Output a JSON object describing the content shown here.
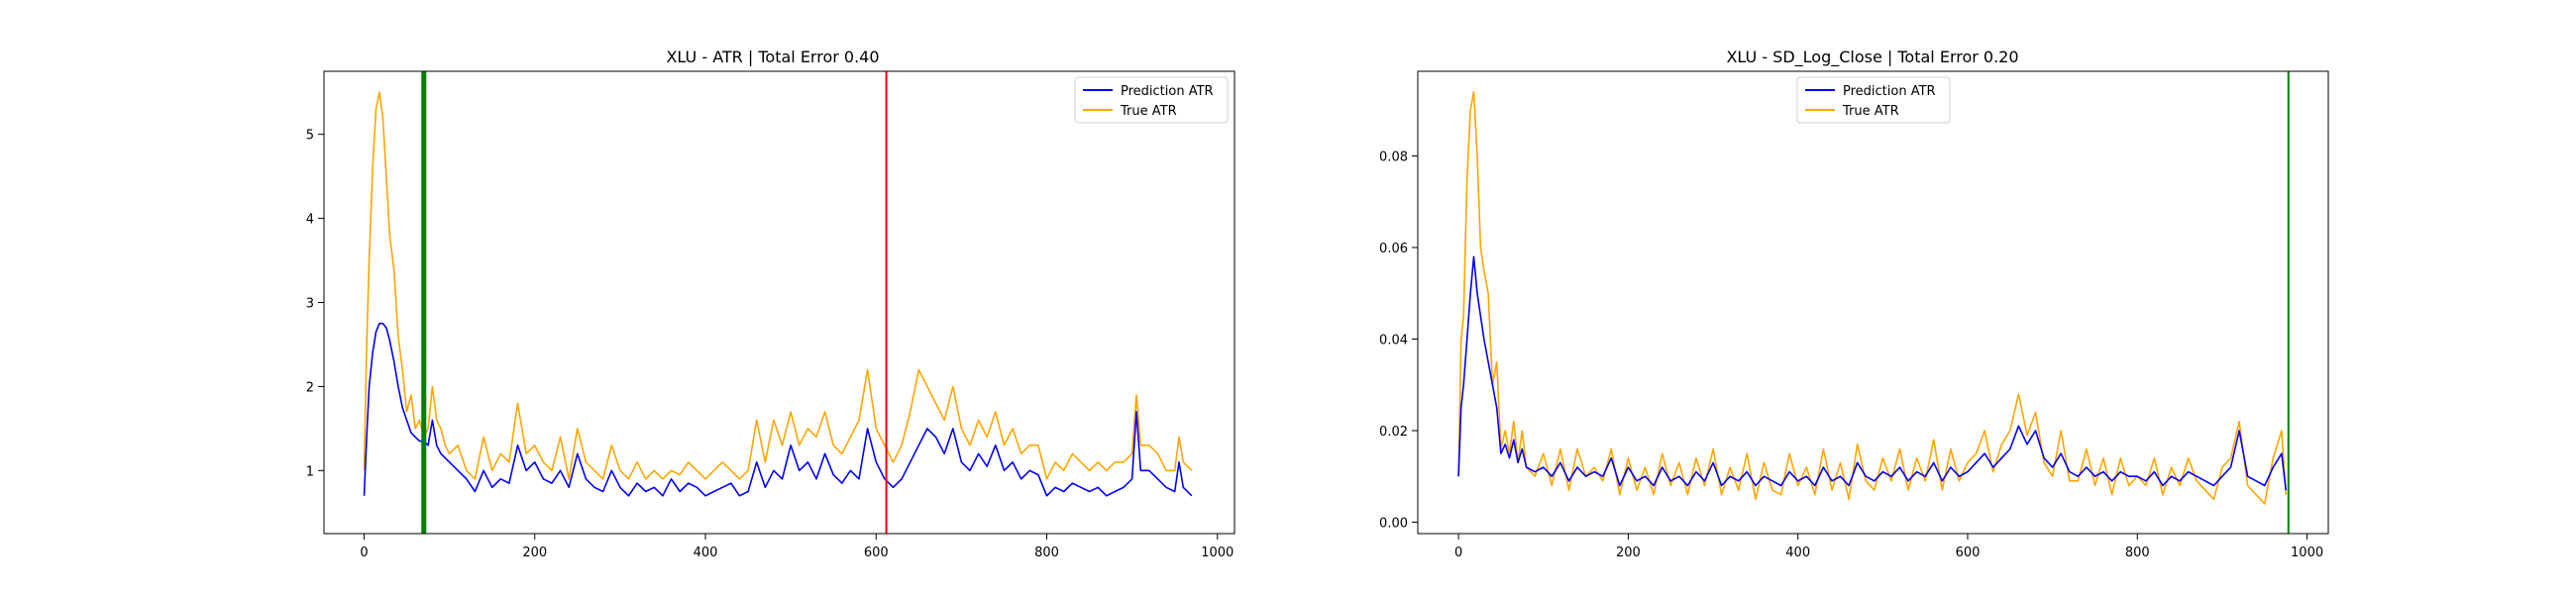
{
  "chart_data": [
    {
      "type": "line",
      "title": "XLU - ATR | Total Error 0.40",
      "xlabel": "",
      "ylabel": "",
      "xlim": [
        -47,
        1020
      ],
      "ylim": [
        0.25,
        5.75
      ],
      "xticks": [
        0,
        200,
        400,
        600,
        800,
        1000
      ],
      "yticks": [
        1,
        2,
        3,
        4,
        5
      ],
      "xtick_labels": [
        "0",
        "200",
        "400",
        "600",
        "800",
        "1000"
      ],
      "ytick_labels": [
        "1",
        "2",
        "3",
        "4",
        "5"
      ],
      "legend": "top-right",
      "vlines": [
        {
          "x": 70,
          "color": "#008000",
          "width": "thick"
        },
        {
          "x": 612,
          "color": "#ff0000",
          "width": "thin"
        }
      ],
      "series": [
        {
          "name": "Prediction ATR",
          "color": "#0000ff",
          "x": [
            0,
            3,
            6,
            10,
            14,
            18,
            22,
            26,
            30,
            35,
            40,
            45,
            50,
            55,
            60,
            65,
            70,
            75,
            80,
            85,
            90,
            95,
            100,
            110,
            120,
            130,
            140,
            150,
            160,
            170,
            180,
            190,
            200,
            210,
            220,
            230,
            240,
            250,
            260,
            270,
            280,
            290,
            300,
            310,
            320,
            330,
            340,
            350,
            360,
            370,
            380,
            390,
            400,
            410,
            420,
            430,
            440,
            450,
            460,
            470,
            480,
            490,
            500,
            510,
            520,
            530,
            540,
            550,
            560,
            570,
            580,
            590,
            600,
            610,
            620,
            630,
            640,
            650,
            660,
            670,
            680,
            690,
            700,
            710,
            720,
            730,
            740,
            750,
            760,
            770,
            780,
            790,
            800,
            810,
            820,
            830,
            840,
            850,
            860,
            870,
            880,
            890,
            900,
            905,
            910,
            920,
            930,
            940,
            950,
            955,
            960,
            970
          ],
          "y": [
            0.7,
            1.4,
            2.0,
            2.4,
            2.65,
            2.75,
            2.75,
            2.7,
            2.55,
            2.3,
            2.0,
            1.75,
            1.6,
            1.45,
            1.4,
            1.35,
            1.35,
            1.3,
            1.6,
            1.3,
            1.2,
            1.15,
            1.1,
            1.0,
            0.9,
            0.75,
            1.0,
            0.8,
            0.9,
            0.85,
            1.3,
            1.0,
            1.1,
            0.9,
            0.85,
            1.0,
            0.8,
            1.2,
            0.9,
            0.8,
            0.75,
            1.0,
            0.8,
            0.7,
            0.85,
            0.75,
            0.8,
            0.7,
            0.9,
            0.75,
            0.85,
            0.8,
            0.7,
            0.75,
            0.8,
            0.85,
            0.7,
            0.75,
            1.1,
            0.8,
            1.0,
            0.9,
            1.3,
            1.0,
            1.1,
            0.9,
            1.2,
            0.95,
            0.85,
            1.0,
            0.9,
            1.5,
            1.1,
            0.9,
            0.8,
            0.9,
            1.1,
            1.3,
            1.5,
            1.4,
            1.2,
            1.5,
            1.1,
            1.0,
            1.2,
            1.05,
            1.3,
            1.0,
            1.1,
            0.9,
            1.0,
            0.95,
            0.7,
            0.8,
            0.75,
            0.85,
            0.8,
            0.75,
            0.8,
            0.7,
            0.75,
            0.8,
            0.9,
            1.7,
            1.0,
            1.0,
            0.9,
            0.8,
            0.75,
            1.1,
            0.8,
            0.7
          ]
        },
        {
          "name": "True ATR",
          "color": "#ffa500",
          "x": [
            0,
            3,
            6,
            10,
            14,
            18,
            22,
            26,
            30,
            35,
            40,
            45,
            50,
            55,
            60,
            65,
            70,
            75,
            80,
            85,
            90,
            95,
            100,
            110,
            120,
            130,
            140,
            150,
            160,
            170,
            180,
            190,
            200,
            210,
            220,
            230,
            240,
            250,
            260,
            270,
            280,
            290,
            300,
            310,
            320,
            330,
            340,
            350,
            360,
            370,
            380,
            390,
            400,
            410,
            420,
            430,
            440,
            450,
            460,
            470,
            480,
            490,
            500,
            510,
            520,
            530,
            540,
            550,
            560,
            570,
            580,
            590,
            600,
            610,
            620,
            630,
            640,
            650,
            660,
            670,
            680,
            690,
            700,
            710,
            720,
            730,
            740,
            750,
            760,
            770,
            780,
            790,
            800,
            810,
            820,
            830,
            840,
            850,
            860,
            870,
            880,
            890,
            900,
            905,
            910,
            920,
            930,
            940,
            950,
            955,
            960,
            970
          ],
          "y": [
            1.0,
            2.5,
            3.5,
            4.6,
            5.3,
            5.5,
            5.2,
            4.5,
            3.8,
            3.4,
            2.6,
            2.2,
            1.7,
            1.9,
            1.5,
            1.6,
            1.4,
            1.5,
            2.0,
            1.6,
            1.5,
            1.3,
            1.2,
            1.3,
            1.0,
            0.9,
            1.4,
            1.0,
            1.2,
            1.1,
            1.8,
            1.2,
            1.3,
            1.1,
            1.0,
            1.4,
            0.9,
            1.5,
            1.1,
            1.0,
            0.9,
            1.3,
            1.0,
            0.9,
            1.1,
            0.9,
            1.0,
            0.9,
            1.0,
            0.95,
            1.1,
            1.0,
            0.9,
            1.0,
            1.1,
            1.0,
            0.9,
            1.0,
            1.6,
            1.1,
            1.6,
            1.3,
            1.7,
            1.3,
            1.5,
            1.4,
            1.7,
            1.3,
            1.2,
            1.4,
            1.6,
            2.2,
            1.5,
            1.3,
            1.1,
            1.3,
            1.7,
            2.2,
            2.0,
            1.8,
            1.6,
            2.0,
            1.5,
            1.3,
            1.6,
            1.4,
            1.7,
            1.3,
            1.5,
            1.2,
            1.3,
            1.3,
            0.9,
            1.1,
            1.0,
            1.2,
            1.1,
            1.0,
            1.1,
            1.0,
            1.1,
            1.1,
            1.2,
            1.9,
            1.3,
            1.3,
            1.2,
            1.0,
            1.0,
            1.4,
            1.1,
            1.0
          ]
        }
      ]
    },
    {
      "type": "line",
      "title": "XLU - SD_Log_Close | Total Error 0.20",
      "xlabel": "",
      "ylabel": "",
      "xlim": [
        -48,
        1025
      ],
      "ylim": [
        -0.0025,
        0.0985
      ],
      "xticks": [
        0,
        200,
        400,
        600,
        800,
        1000
      ],
      "yticks": [
        0.0,
        0.02,
        0.04,
        0.06,
        0.08
      ],
      "xtick_labels": [
        "0",
        "200",
        "400",
        "600",
        "800",
        "1000"
      ],
      "ytick_labels": [
        "0.00",
        "0.02",
        "0.04",
        "0.06",
        "0.08"
      ],
      "legend": "top-center",
      "vlines": [
        {
          "x": 978,
          "color": "#008000",
          "width": "thin"
        }
      ],
      "series": [
        {
          "name": "Prediction ATR",
          "color": "#0000ff",
          "x": [
            0,
            3,
            6,
            10,
            14,
            18,
            22,
            26,
            30,
            35,
            40,
            45,
            50,
            55,
            60,
            65,
            70,
            75,
            80,
            90,
            100,
            110,
            120,
            130,
            140,
            150,
            160,
            170,
            180,
            190,
            200,
            210,
            220,
            230,
            240,
            250,
            260,
            270,
            280,
            290,
            300,
            310,
            320,
            330,
            340,
            350,
            360,
            370,
            380,
            390,
            400,
            410,
            420,
            430,
            440,
            450,
            460,
            470,
            480,
            490,
            500,
            510,
            520,
            530,
            540,
            550,
            560,
            570,
            580,
            590,
            600,
            610,
            620,
            630,
            640,
            650,
            660,
            670,
            680,
            690,
            700,
            710,
            720,
            730,
            740,
            750,
            760,
            770,
            780,
            790,
            800,
            810,
            820,
            830,
            840,
            850,
            860,
            870,
            880,
            890,
            900,
            910,
            920,
            930,
            940,
            950,
            960,
            970,
            975
          ],
          "y": [
            0.01,
            0.025,
            0.03,
            0.04,
            0.05,
            0.058,
            0.05,
            0.045,
            0.04,
            0.035,
            0.03,
            0.025,
            0.015,
            0.017,
            0.014,
            0.018,
            0.013,
            0.016,
            0.012,
            0.011,
            0.012,
            0.01,
            0.013,
            0.009,
            0.012,
            0.01,
            0.011,
            0.01,
            0.014,
            0.008,
            0.012,
            0.009,
            0.01,
            0.008,
            0.012,
            0.009,
            0.01,
            0.008,
            0.011,
            0.009,
            0.013,
            0.008,
            0.01,
            0.009,
            0.011,
            0.008,
            0.01,
            0.009,
            0.008,
            0.011,
            0.009,
            0.01,
            0.008,
            0.012,
            0.009,
            0.01,
            0.008,
            0.013,
            0.01,
            0.009,
            0.011,
            0.01,
            0.012,
            0.009,
            0.011,
            0.01,
            0.013,
            0.009,
            0.012,
            0.01,
            0.011,
            0.013,
            0.015,
            0.012,
            0.014,
            0.016,
            0.021,
            0.017,
            0.02,
            0.014,
            0.012,
            0.015,
            0.011,
            0.01,
            0.012,
            0.01,
            0.011,
            0.009,
            0.011,
            0.01,
            0.01,
            0.009,
            0.011,
            0.008,
            0.01,
            0.009,
            0.011,
            0.01,
            0.009,
            0.008,
            0.01,
            0.012,
            0.02,
            0.01,
            0.009,
            0.008,
            0.012,
            0.015,
            0.007
          ]
        },
        {
          "name": "True ATR",
          "color": "#ffa500",
          "x": [
            0,
            3,
            6,
            10,
            14,
            18,
            22,
            26,
            30,
            35,
            40,
            45,
            50,
            55,
            60,
            65,
            70,
            75,
            80,
            90,
            100,
            110,
            120,
            130,
            140,
            150,
            160,
            170,
            180,
            190,
            200,
            210,
            220,
            230,
            240,
            250,
            260,
            270,
            280,
            290,
            300,
            310,
            320,
            330,
            340,
            350,
            360,
            370,
            380,
            390,
            400,
            410,
            420,
            430,
            440,
            450,
            460,
            470,
            480,
            490,
            500,
            510,
            520,
            530,
            540,
            550,
            560,
            570,
            580,
            590,
            600,
            610,
            620,
            630,
            640,
            650,
            660,
            670,
            680,
            690,
            700,
            710,
            720,
            730,
            740,
            750,
            760,
            770,
            780,
            790,
            800,
            810,
            820,
            830,
            840,
            850,
            860,
            870,
            880,
            890,
            900,
            910,
            920,
            930,
            940,
            950,
            960,
            970,
            975
          ],
          "y": [
            0.01,
            0.04,
            0.045,
            0.075,
            0.09,
            0.094,
            0.08,
            0.06,
            0.055,
            0.05,
            0.03,
            0.035,
            0.016,
            0.02,
            0.015,
            0.022,
            0.013,
            0.02,
            0.012,
            0.01,
            0.015,
            0.008,
            0.016,
            0.007,
            0.016,
            0.01,
            0.012,
            0.009,
            0.016,
            0.006,
            0.014,
            0.007,
            0.012,
            0.006,
            0.015,
            0.008,
            0.013,
            0.006,
            0.014,
            0.008,
            0.016,
            0.006,
            0.012,
            0.007,
            0.015,
            0.005,
            0.013,
            0.007,
            0.006,
            0.015,
            0.008,
            0.012,
            0.006,
            0.016,
            0.007,
            0.013,
            0.005,
            0.017,
            0.009,
            0.007,
            0.014,
            0.009,
            0.016,
            0.007,
            0.014,
            0.009,
            0.018,
            0.007,
            0.016,
            0.009,
            0.013,
            0.015,
            0.02,
            0.011,
            0.017,
            0.02,
            0.028,
            0.019,
            0.024,
            0.013,
            0.01,
            0.02,
            0.009,
            0.009,
            0.016,
            0.008,
            0.014,
            0.006,
            0.014,
            0.008,
            0.01,
            0.008,
            0.014,
            0.006,
            0.012,
            0.008,
            0.014,
            0.009,
            0.007,
            0.005,
            0.012,
            0.014,
            0.022,
            0.008,
            0.006,
            0.004,
            0.014,
            0.02,
            0.006
          ]
        }
      ]
    }
  ]
}
